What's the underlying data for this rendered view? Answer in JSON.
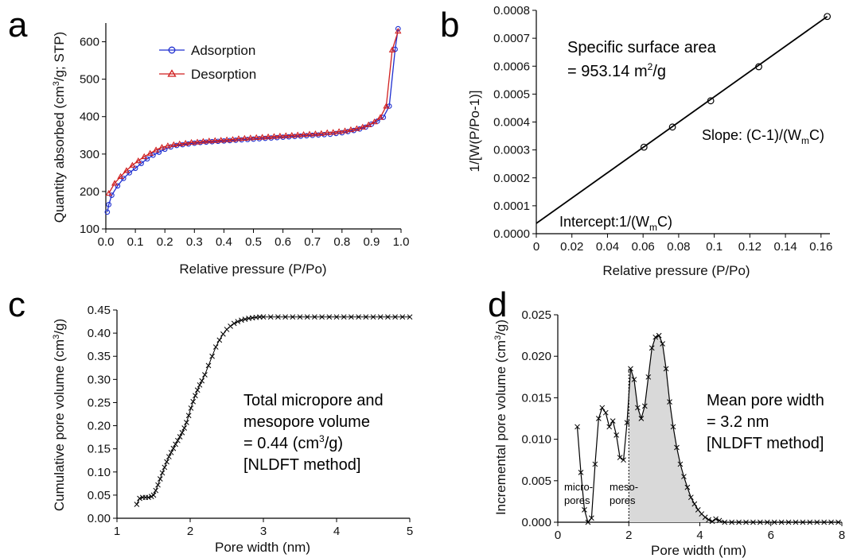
{
  "figure": {
    "panels": [
      "a",
      "b",
      "c",
      "d"
    ]
  },
  "chart_data": [
    {
      "panel": "a",
      "type": "line",
      "xlabel": "Relative pressure (P/Po)",
      "ylabel": "Quantity absorbed (cm³/g; STP)",
      "xlim": [
        0.0,
        1.0
      ],
      "ylim": [
        100,
        650
      ],
      "xticks": [
        "0.0",
        "0.1",
        "0.2",
        "0.3",
        "0.4",
        "0.5",
        "0.6",
        "0.7",
        "0.8",
        "0.9",
        "1.0"
      ],
      "yticks": [
        "100",
        "200",
        "300",
        "400",
        "500",
        "600"
      ],
      "legend_position": "top-center",
      "series": [
        {
          "name": "Adsorption",
          "color": "#1f2fd0",
          "marker": "circle",
          "x": [
            0.005,
            0.01,
            0.02,
            0.04,
            0.06,
            0.08,
            0.1,
            0.12,
            0.14,
            0.16,
            0.18,
            0.2,
            0.22,
            0.24,
            0.26,
            0.28,
            0.3,
            0.32,
            0.34,
            0.36,
            0.38,
            0.4,
            0.42,
            0.44,
            0.46,
            0.48,
            0.5,
            0.52,
            0.54,
            0.56,
            0.58,
            0.6,
            0.62,
            0.64,
            0.66,
            0.68,
            0.7,
            0.72,
            0.74,
            0.76,
            0.78,
            0.8,
            0.82,
            0.84,
            0.86,
            0.88,
            0.9,
            0.92,
            0.94,
            0.96,
            0.98,
            0.99
          ],
          "y": [
            145,
            165,
            190,
            215,
            235,
            250,
            262,
            275,
            287,
            297,
            305,
            313,
            319,
            323,
            325,
            327,
            329,
            331,
            332,
            333,
            334,
            335,
            336,
            337,
            338,
            339,
            340,
            341,
            342,
            343,
            344,
            345,
            346,
            347,
            348,
            349,
            350,
            351,
            352,
            353,
            355,
            357,
            360,
            363,
            367,
            372,
            380,
            388,
            398,
            428,
            580,
            635
          ]
        },
        {
          "name": "Desorption",
          "color": "#d01f1f",
          "marker": "triangle",
          "x": [
            0.01,
            0.03,
            0.05,
            0.07,
            0.09,
            0.11,
            0.13,
            0.15,
            0.17,
            0.19,
            0.21,
            0.23,
            0.25,
            0.27,
            0.29,
            0.31,
            0.33,
            0.35,
            0.37,
            0.39,
            0.41,
            0.43,
            0.45,
            0.47,
            0.49,
            0.51,
            0.53,
            0.55,
            0.57,
            0.59,
            0.61,
            0.63,
            0.65,
            0.67,
            0.69,
            0.71,
            0.73,
            0.75,
            0.77,
            0.79,
            0.81,
            0.83,
            0.85,
            0.87,
            0.89,
            0.91,
            0.93,
            0.95,
            0.97,
            0.99
          ],
          "y": [
            195,
            222,
            240,
            256,
            270,
            282,
            293,
            302,
            311,
            318,
            322,
            325,
            327,
            329,
            331,
            332,
            334,
            335,
            336,
            337,
            338,
            339,
            341,
            342,
            343,
            344,
            345,
            346,
            347,
            348,
            349,
            350,
            351,
            352,
            353,
            354,
            355,
            357,
            358,
            360,
            362,
            365,
            368,
            372,
            378,
            386,
            398,
            428,
            578,
            628
          ]
        }
      ]
    },
    {
      "panel": "b",
      "type": "scatter",
      "xlabel": "Relative pressure (P/Po)",
      "ylabel": "1/[W(P/Po-1)]",
      "xlim": [
        0,
        0.165
      ],
      "ylim": [
        0,
        0.0008
      ],
      "xticks": [
        "0",
        "0.02",
        "0.04",
        "0.06",
        "0.08",
        "0.1",
        "0.12",
        "0.14",
        "0.16"
      ],
      "yticks": [
        "0.0000",
        "0.0001",
        "0.0002",
        "0.0003",
        "0.0004",
        "0.0005",
        "0.0006",
        "0.0007",
        "0.0008"
      ],
      "points": {
        "x": [
          0.0605,
          0.0765,
          0.098,
          0.125,
          0.1635
        ],
        "y": [
          0.00031,
          0.000382,
          0.000476,
          0.000598,
          0.000778
        ]
      },
      "fit_line": {
        "x": [
          0,
          0.1635
        ],
        "y": [
          3.7e-05,
          0.000778
        ]
      },
      "annotations": {
        "surface_title": "Specific surface area",
        "surface_prefix": "= 953.14 m",
        "surface_sup": "2",
        "surface_suffix": "/g",
        "slope_prefix": "Slope: (C-1)/(W",
        "slope_sub": "m",
        "slope_suffix": "C)",
        "intercept_prefix": "Intercept:1/(W",
        "intercept_sub": "m",
        "intercept_suffix": "C)"
      }
    },
    {
      "panel": "c",
      "type": "line",
      "xlabel": "Pore width (nm)",
      "ylabel": "Cumulative pore volume (cm³/g)",
      "xlim": [
        1,
        5
      ],
      "ylim": [
        0,
        0.45
      ],
      "xticks": [
        "1",
        "2",
        "3",
        "4",
        "5"
      ],
      "yticks": [
        "0.00",
        "0.05",
        "0.10",
        "0.15",
        "0.20",
        "0.25",
        "0.30",
        "0.35",
        "0.40",
        "0.45"
      ],
      "series": [
        {
          "name": "",
          "color": "#000000",
          "marker": "x",
          "x": [
            1.27,
            1.31,
            1.35,
            1.39,
            1.43,
            1.47,
            1.5,
            1.53,
            1.56,
            1.59,
            1.62,
            1.65,
            1.68,
            1.71,
            1.74,
            1.77,
            1.8,
            1.83,
            1.86,
            1.89,
            1.92,
            1.95,
            1.98,
            2.01,
            2.04,
            2.07,
            2.1,
            2.13,
            2.16,
            2.2,
            2.25,
            2.3,
            2.35,
            2.4,
            2.45,
            2.5,
            2.55,
            2.6,
            2.65,
            2.7,
            2.75,
            2.8,
            2.85,
            2.9,
            2.95,
            3.0,
            3.1,
            3.2,
            3.3,
            3.4,
            3.5,
            3.6,
            3.7,
            3.8,
            3.9,
            4.0,
            4.1,
            4.2,
            4.3,
            4.4,
            4.5,
            4.6,
            4.7,
            4.8,
            4.9,
            5.0
          ],
          "y": [
            0.03,
            0.043,
            0.045,
            0.045,
            0.045,
            0.047,
            0.05,
            0.06,
            0.072,
            0.085,
            0.098,
            0.11,
            0.122,
            0.133,
            0.142,
            0.151,
            0.16,
            0.168,
            0.176,
            0.185,
            0.195,
            0.207,
            0.222,
            0.238,
            0.252,
            0.265,
            0.277,
            0.288,
            0.297,
            0.31,
            0.33,
            0.35,
            0.37,
            0.385,
            0.398,
            0.408,
            0.415,
            0.421,
            0.425,
            0.428,
            0.43,
            0.432,
            0.433,
            0.434,
            0.435,
            0.435,
            0.435,
            0.435,
            0.435,
            0.435,
            0.435,
            0.435,
            0.435,
            0.435,
            0.435,
            0.435,
            0.435,
            0.435,
            0.435,
            0.435,
            0.435,
            0.435,
            0.435,
            0.435,
            0.435,
            0.435
          ]
        }
      ],
      "annotations": {
        "line1": "Total micropore and",
        "line2": "mesopore volume",
        "line3_prefix": "= 0.44 (cm",
        "line3_sup": "3",
        "line3_suffix": "/g)",
        "line4": "[NLDFT method]"
      }
    },
    {
      "panel": "d",
      "type": "area",
      "xlabel": "Pore width (nm)",
      "ylabel": "Incremental pore volume (cm³/g)",
      "xlim": [
        0,
        8
      ],
      "ylim": [
        0,
        0.025
      ],
      "xticks": [
        "0",
        "2",
        "4",
        "6",
        "8"
      ],
      "yticks": [
        "0.000",
        "0.005",
        "0.010",
        "0.015",
        "0.020",
        "0.025"
      ],
      "divider_x": 2.0,
      "shade_from_x": 2.0,
      "series": [
        {
          "name": "",
          "color": "#000000",
          "marker": "x",
          "x": [
            0.55,
            0.65,
            0.75,
            0.85,
            0.95,
            1.05,
            1.15,
            1.25,
            1.35,
            1.45,
            1.55,
            1.65,
            1.75,
            1.85,
            1.95,
            2.05,
            2.15,
            2.25,
            2.35,
            2.45,
            2.55,
            2.65,
            2.75,
            2.85,
            2.95,
            3.05,
            3.15,
            3.25,
            3.35,
            3.45,
            3.55,
            3.65,
            3.75,
            3.85,
            3.95,
            4.05,
            4.15,
            4.25,
            4.35,
            4.45,
            4.55,
            4.7,
            4.9,
            5.1,
            5.3,
            5.5,
            5.7,
            5.9,
            6.1,
            6.3,
            6.5,
            6.7,
            6.9,
            7.1,
            7.3,
            7.5,
            7.7,
            7.9
          ],
          "y": [
            0.0115,
            0.006,
            0.0015,
            0.0,
            0.0005,
            0.007,
            0.0125,
            0.0138,
            0.0132,
            0.0115,
            0.0122,
            0.0105,
            0.0078,
            0.0075,
            0.012,
            0.0185,
            0.0172,
            0.0138,
            0.0125,
            0.014,
            0.0175,
            0.021,
            0.0223,
            0.0225,
            0.0215,
            0.0185,
            0.0145,
            0.0115,
            0.009,
            0.007,
            0.0055,
            0.0042,
            0.003,
            0.0022,
            0.0015,
            0.001,
            0.0006,
            0.0003,
            0.0001,
            0.0004,
            0.0002,
            0.0,
            0.0,
            0.0,
            0.0,
            0.0,
            0.0,
            0.0,
            0.0,
            0.0,
            0.0,
            0.0,
            0.0,
            0.0,
            0.0,
            0.0,
            0.0,
            0.0
          ]
        }
      ],
      "annotations": {
        "micro_line1": "micro-",
        "micro_line2": "pores",
        "meso_line1": "meso-",
        "meso_line2": "pores",
        "mean_line1": "Mean pore width",
        "mean_line2": "= 3.2 nm",
        "mean_line3": "[NLDFT method]"
      }
    }
  ]
}
